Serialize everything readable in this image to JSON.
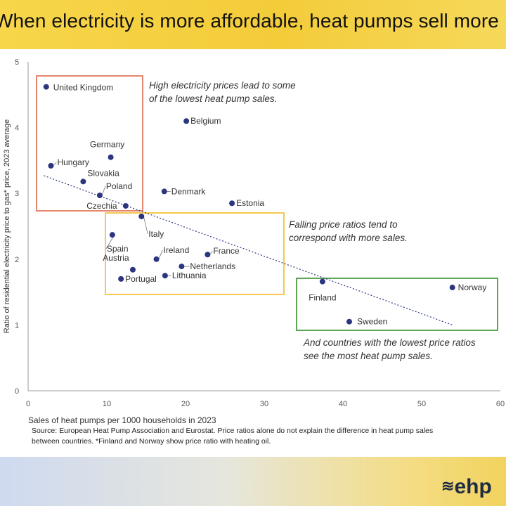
{
  "title": "When electricity is more affordable, heat pumps sell more",
  "source": "Source: European Heat Pump Association and Eurostat. Price ratios alone do not explain the difference in heat pump sales between countries. *Finland and Norway show price ratio with heating oil.",
  "logo": "ehp",
  "colors": {
    "dot": "#2b3580",
    "trend": "#2b3580",
    "box_red": "#e07a5f",
    "box_yellow": "#f2c33c",
    "box_green": "#4e9a47"
  },
  "chart_data": {
    "type": "scatter",
    "xlabel": "Sales of heat pumps per 1000 households in 2023",
    "ylabel": "Ratio of residential electricity price to gas* price, 2023 average",
    "xlim": [
      0,
      60
    ],
    "ylim": [
      0,
      5
    ],
    "xticks": [
      0,
      10,
      20,
      30,
      40,
      50,
      60
    ],
    "yticks": [
      0,
      1,
      2,
      3,
      4,
      5
    ],
    "grid": false,
    "points": [
      {
        "label": "United Kingdom",
        "x": 2.3,
        "y": 4.62
      },
      {
        "label": "Belgium",
        "x": 20.1,
        "y": 4.1
      },
      {
        "label": "Germany",
        "x": 10.5,
        "y": 3.55
      },
      {
        "label": "Hungary",
        "x": 2.9,
        "y": 3.42
      },
      {
        "label": "Slovakia",
        "x": 7.0,
        "y": 3.18
      },
      {
        "label": "Poland",
        "x": 9.1,
        "y": 2.97
      },
      {
        "label": "Czechia",
        "x": 12.4,
        "y": 2.81
      },
      {
        "label": "Denmark",
        "x": 17.3,
        "y": 3.03
      },
      {
        "label": "Estonia",
        "x": 25.9,
        "y": 2.85
      },
      {
        "label": "Italy",
        "x": 14.4,
        "y": 2.65
      },
      {
        "label": "Spain",
        "x": 10.7,
        "y": 2.37
      },
      {
        "label": "Ireland",
        "x": 16.3,
        "y": 2.0
      },
      {
        "label": "France",
        "x": 22.8,
        "y": 2.07
      },
      {
        "label": "Austria",
        "x": 13.3,
        "y": 1.84
      },
      {
        "label": "Netherlands",
        "x": 19.5,
        "y": 1.89
      },
      {
        "label": "Portugal",
        "x": 11.8,
        "y": 1.7
      },
      {
        "label": "Lithuania",
        "x": 17.4,
        "y": 1.75
      },
      {
        "label": "Finland",
        "x": 37.4,
        "y": 1.66
      },
      {
        "label": "Norway",
        "x": 53.9,
        "y": 1.57
      },
      {
        "label": "Sweden",
        "x": 40.8,
        "y": 1.05
      }
    ],
    "trendline": {
      "x": [
        2,
        53.9
      ],
      "y": [
        3.27,
        1.0
      ]
    },
    "annotations": [
      {
        "group": "high",
        "lines": [
          "High electricity prices lead to some",
          "of the lowest heat pump sales."
        ]
      },
      {
        "group": "mid",
        "lines": [
          "Falling price ratios tend to",
          "correspond with more sales."
        ]
      },
      {
        "group": "low",
        "lines": [
          "And countries with the lowest price ratios",
          "see the most heat pump sales."
        ]
      }
    ]
  }
}
